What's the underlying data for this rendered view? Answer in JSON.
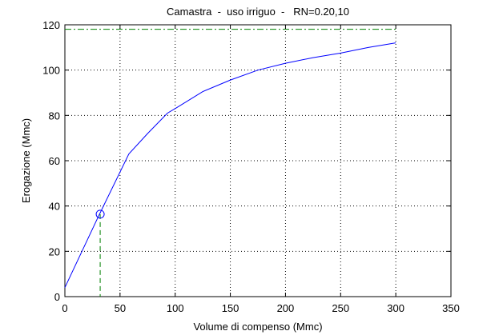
{
  "chart_data": {
    "type": "line",
    "title": "Camastra  -  uso irriguo  -   RN=0.20,10",
    "xlabel": "Volume di compenso (Mmc)",
    "ylabel": "Erogazione (Mmc)",
    "xlim": [
      0,
      350
    ],
    "ylim": [
      0,
      120
    ],
    "xticks": [
      0,
      50,
      100,
      150,
      200,
      250,
      300,
      350
    ],
    "yticks": [
      0,
      20,
      40,
      60,
      80,
      100,
      120
    ],
    "grid": true,
    "series": [
      {
        "color": "#0000ff",
        "x": [
          0,
          30,
          58,
          75,
          93,
          100,
          125,
          150,
          175,
          200,
          225,
          250,
          275,
          300
        ],
        "values": [
          4,
          35,
          63,
          72,
          81,
          83,
          90.5,
          95.6,
          100,
          103,
          105.5,
          107.5,
          110,
          112
        ]
      }
    ],
    "point": {
      "x": 32,
      "y": 36.4,
      "color": "#0000ff"
    },
    "hline": {
      "value": 118,
      "xmax": 300,
      "color": "#008000"
    },
    "vline": {
      "value": 32,
      "color": "#008000"
    }
  }
}
